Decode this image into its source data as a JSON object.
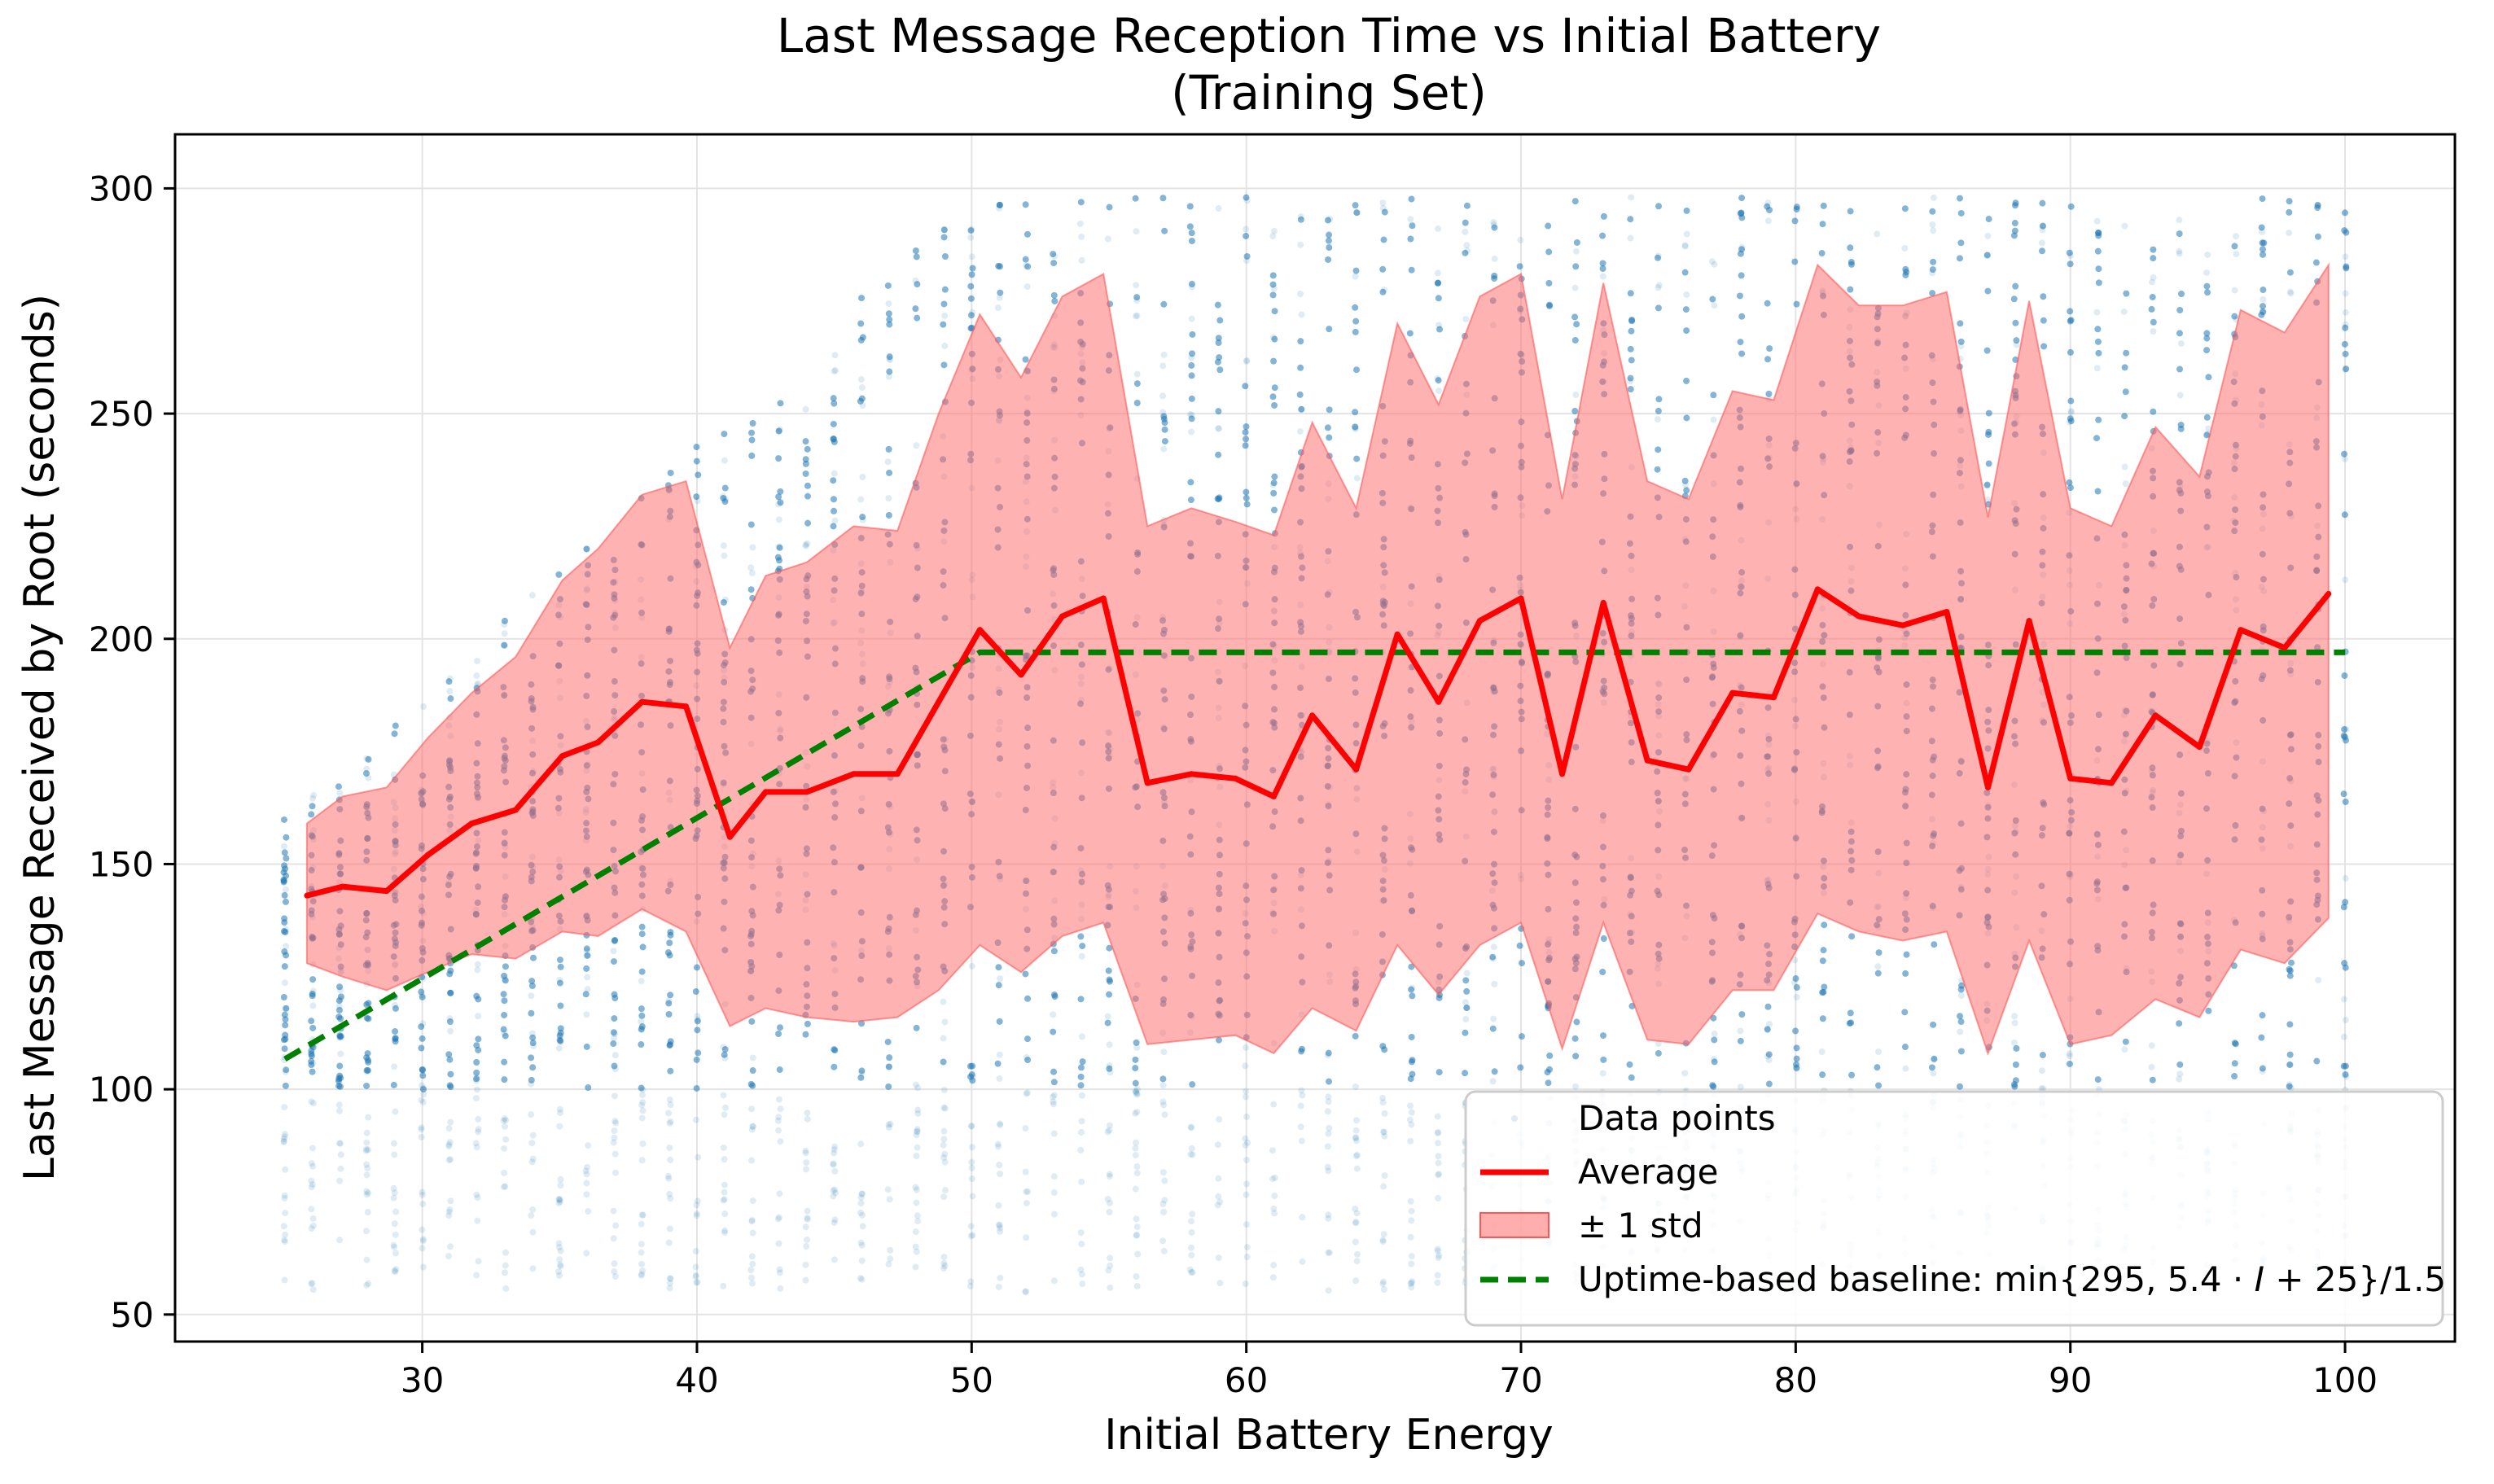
{
  "chart_data": {
    "type": "line",
    "title": "Last Message Reception Time vs Initial Battery",
    "subtitle": "(Training Set)",
    "xlabel": "Initial Battery Energy",
    "ylabel": "Last Message Received by Root (seconds)",
    "xlim": [
      21,
      104
    ],
    "ylim": [
      44,
      312
    ],
    "x_ticks": [
      30,
      40,
      50,
      60,
      70,
      80,
      90,
      100
    ],
    "y_ticks": [
      50,
      100,
      150,
      200,
      250,
      300
    ],
    "grid": true,
    "legend_position": "bottom-right",
    "x": [
      25.8,
      27.1,
      28.7,
      30.2,
      31.8,
      33.4,
      35.1,
      36.4,
      38.0,
      39.6,
      41.2,
      42.5,
      44.0,
      45.7,
      47.3,
      48.8,
      50.3,
      51.8,
      53.3,
      54.8,
      56.4,
      58.0,
      59.6,
      61.0,
      62.4,
      64.0,
      65.5,
      67.0,
      68.5,
      70.0,
      71.5,
      73.0,
      74.6,
      76.1,
      77.7,
      79.2,
      80.8,
      82.3,
      83.9,
      85.5,
      87.0,
      88.5,
      90.0,
      91.5,
      93.1,
      94.7,
      96.2,
      97.8,
      99.4
    ],
    "series": [
      {
        "name": "Average",
        "type": "line",
        "color": "#ff0000",
        "values": [
          143,
          145,
          144,
          152,
          159,
          162,
          174,
          177,
          186,
          185,
          156,
          166,
          166,
          170,
          170,
          186,
          202,
          192,
          205,
          209,
          168,
          170,
          169,
          165,
          183,
          171,
          201,
          186,
          204,
          209,
          170,
          208,
          173,
          171,
          188,
          187,
          211,
          205,
          203,
          206,
          167,
          204,
          169,
          168,
          183,
          176,
          202,
          198,
          210
        ]
      },
      {
        "name": "± 1 std",
        "type": "band",
        "color": "#ff6b6b",
        "upper": [
          159,
          165,
          167,
          178,
          188,
          196,
          213,
          220,
          232,
          235,
          198,
          214,
          217,
          225,
          224,
          250,
          272,
          258,
          276,
          281,
          225,
          229,
          226,
          223,
          248,
          229,
          270,
          252,
          276,
          281,
          231,
          279,
          235,
          231,
          255,
          253,
          283,
          274,
          274,
          277,
          227,
          275,
          229,
          225,
          247,
          236,
          273,
          268,
          283
        ],
        "lower": [
          128,
          125,
          122,
          126,
          130,
          129,
          135,
          134,
          140,
          135,
          114,
          118,
          116,
          115,
          116,
          122,
          132,
          126,
          134,
          137,
          110,
          111,
          112,
          108,
          118,
          113,
          132,
          121,
          132,
          137,
          109,
          137,
          111,
          110,
          122,
          122,
          139,
          135,
          133,
          135,
          108,
          133,
          110,
          112,
          120,
          116,
          131,
          128,
          138
        ]
      },
      {
        "name": "Uptime-based baseline: min{295, 5.4 · I + 25}/1.5",
        "type": "line",
        "style": "dashed",
        "color": "#008000",
        "x": [
          25,
          50.3,
          100
        ],
        "values": [
          106.7,
          197,
          197
        ]
      },
      {
        "name": "Data points",
        "type": "scatter",
        "color": "#1f77b4",
        "x_range": [
          25,
          100
        ],
        "columns_note": "vertical columns of points at each integer battery level",
        "y_min_approx": 55,
        "y_max_approx_at_25": 160,
        "y_max_approx_at_50": 298,
        "y_max_approx_at_100": 298
      }
    ],
    "legend": {
      "data_points": "Data points",
      "average": "Average",
      "std": "± 1 std",
      "baseline_prefix": "Uptime-based baseline: min{295, 5.4 · ",
      "baseline_var": "I",
      "baseline_suffix": " + 25}/1.5"
    }
  }
}
